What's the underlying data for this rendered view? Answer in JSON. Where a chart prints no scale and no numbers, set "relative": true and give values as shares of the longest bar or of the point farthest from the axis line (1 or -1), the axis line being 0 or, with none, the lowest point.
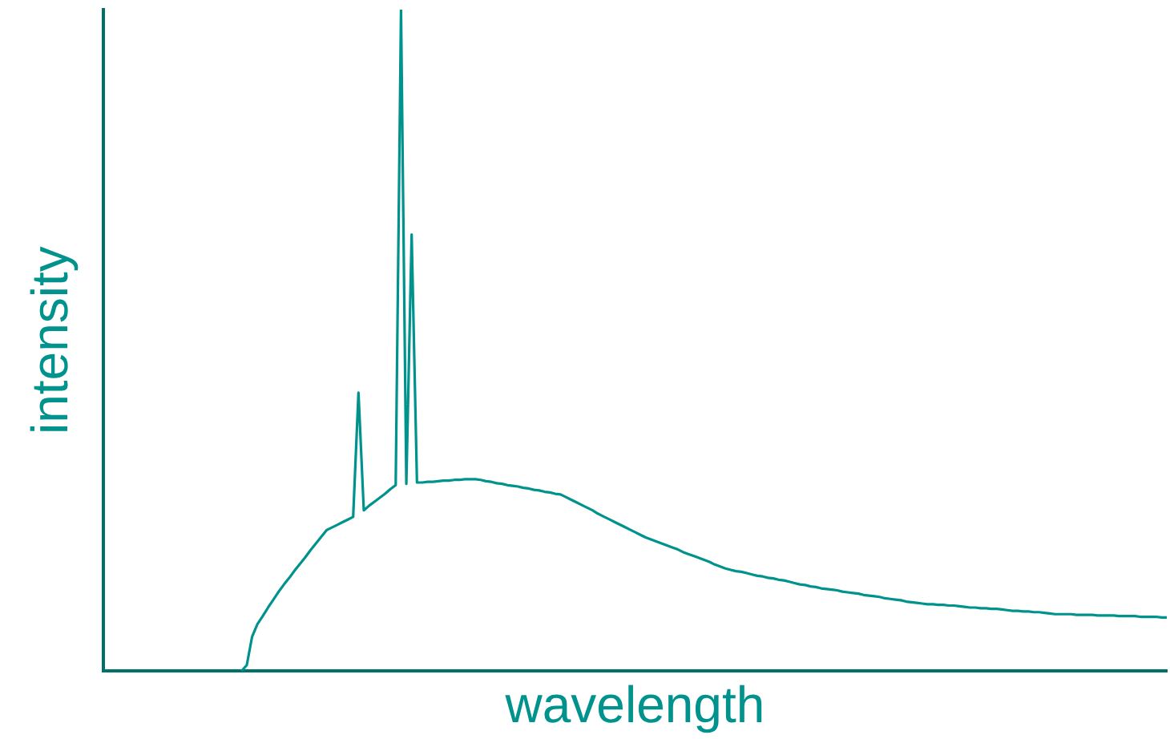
{
  "chart_data": {
    "type": "line",
    "xlabel": "wavelength",
    "ylabel": "intensity",
    "relative": true,
    "categories": [
      null,
      null,
      null,
      null,
      null,
      null,
      null,
      null,
      null,
      null,
      null,
      null,
      null,
      null,
      null,
      null,
      null,
      null,
      null,
      null,
      null,
      null,
      null,
      null,
      null,
      null,
      null,
      null,
      null,
      null,
      null,
      null,
      null,
      null,
      null,
      null,
      null,
      null,
      null,
      null,
      null,
      null,
      null,
      null,
      null,
      null,
      null,
      null,
      null,
      null,
      null,
      null,
      null,
      null,
      null,
      null,
      null,
      null,
      null,
      null,
      null,
      null,
      null,
      null,
      null,
      null,
      null,
      null,
      null,
      null,
      null,
      null,
      null,
      null,
      null,
      null,
      null,
      null,
      null,
      null,
      null,
      null,
      null,
      null,
      null,
      null,
      null,
      null,
      null,
      null,
      null,
      null,
      null,
      null,
      null,
      null,
      null,
      null,
      null,
      null,
      null,
      null,
      null,
      null,
      null,
      null,
      null,
      null,
      null,
      null,
      null,
      null,
      null,
      null,
      null,
      null,
      null,
      null,
      null,
      null,
      null,
      null,
      null,
      null,
      null,
      null,
      null,
      null,
      null,
      null,
      null,
      null,
      null,
      null,
      null,
      null,
      null,
      null,
      null,
      null,
      null,
      null,
      null,
      null,
      null,
      null,
      null,
      null,
      null,
      null,
      null,
      null,
      null,
      null,
      null,
      null,
      null,
      null,
      null,
      null,
      null,
      null,
      null,
      null,
      null,
      null,
      null,
      null,
      null,
      null,
      null,
      null,
      null,
      null,
      null,
      null,
      null,
      null,
      null,
      null,
      null,
      null,
      null,
      null,
      null,
      null,
      null,
      null,
      null,
      null,
      null,
      null,
      null,
      null,
      null,
      null,
      null,
      null,
      null,
      null,
      null
    ],
    "series": [
      {
        "color": "#00928c",
        "values": [
          null,
          null,
          null,
          null,
          null,
          null,
          null,
          null,
          null,
          null,
          null,
          null,
          null,
          null,
          null,
          null,
          null,
          null,
          null,
          null,
          null,
          null,
          null,
          null,
          null,
          null,
          0,
          0.009,
          0.052,
          0.071,
          0.083,
          0.096,
          0.108,
          0.12,
          0.131,
          0.141,
          0.152,
          0.162,
          0.172,
          0.183,
          0.193,
          0.203,
          0.213,
          0.217,
          0.221,
          0.225,
          0.229,
          0.233,
          0.421,
          0.243,
          0.25,
          0.256,
          0.262,
          0.268,
          0.275,
          0.281,
          1.0,
          0.283,
          0.66,
          0.285,
          0.285,
          0.286,
          0.286,
          0.287,
          0.288,
          0.288,
          0.289,
          0.289,
          0.29,
          0.29,
          0.29,
          0.289,
          0.287,
          0.286,
          0.284,
          0.283,
          0.281,
          0.28,
          0.279,
          0.277,
          0.276,
          0.274,
          0.273,
          0.271,
          0.27,
          0.268,
          0.267,
          0.263,
          0.259,
          0.255,
          0.251,
          0.247,
          0.243,
          0.238,
          0.234,
          0.23,
          0.226,
          0.222,
          0.218,
          0.214,
          0.21,
          0.206,
          0.202,
          0.199,
          0.196,
          0.193,
          0.19,
          0.187,
          0.184,
          0.18,
          0.177,
          0.174,
          0.171,
          0.168,
          0.165,
          0.161,
          0.158,
          0.155,
          0.153,
          0.151,
          0.15,
          0.148,
          0.146,
          0.144,
          0.143,
          0.141,
          0.14,
          0.138,
          0.137,
          0.135,
          0.133,
          0.131,
          0.13,
          0.128,
          0.127,
          0.125,
          0.124,
          0.123,
          0.122,
          0.12,
          0.119,
          0.118,
          0.117,
          0.115,
          0.114,
          0.113,
          0.112,
          0.11,
          0.109,
          0.108,
          0.107,
          0.105,
          0.104,
          0.103,
          0.102,
          0.101,
          0.101,
          0.1,
          0.1,
          0.099,
          0.099,
          0.098,
          0.097,
          0.096,
          0.096,
          0.095,
          0.095,
          0.094,
          0.094,
          0.093,
          0.092,
          0.091,
          0.091,
          0.09,
          0.09,
          0.089,
          0.089,
          0.088,
          0.087,
          0.086,
          0.086,
          0.086,
          0.086,
          0.085,
          0.085,
          0.085,
          0.085,
          0.084,
          0.084,
          0.084,
          0.084,
          0.083,
          0.083,
          0.083,
          0.083,
          0.082,
          0.082,
          0.082,
          0.082,
          0.081,
          0.081
        ]
      }
    ]
  }
}
